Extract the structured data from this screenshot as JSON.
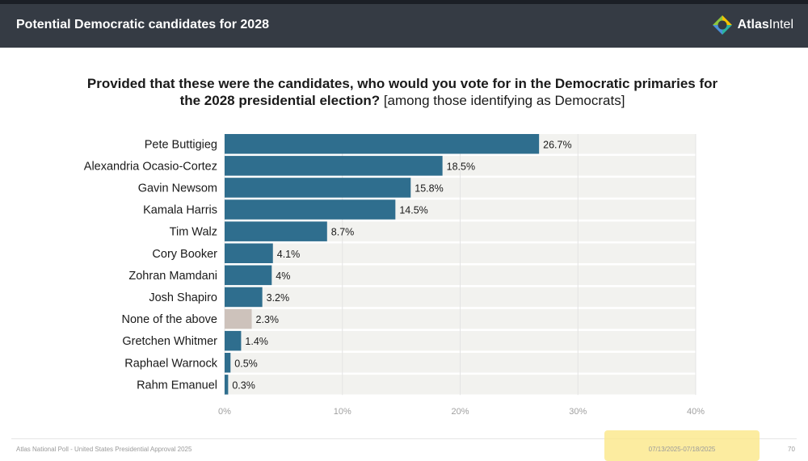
{
  "header": {
    "title": "Potential Democratic candidates for 2028",
    "logo_text_bold": "Atlas",
    "logo_text_regular": "Intel"
  },
  "question": {
    "bold_text": "Provided that these were the candidates, who would you vote for in the Democratic primaries for the 2028 presidential election?",
    "regular_text": " [among those identifying as Democrats]"
  },
  "chart_data": {
    "type": "bar",
    "orientation": "horizontal",
    "categories": [
      "Pete Buttigieg",
      "Alexandria Ocasio-Cortez",
      "Gavin Newsom",
      "Kamala Harris",
      "Tim Walz",
      "Cory Booker",
      "Zohran Mamdani",
      "Josh Shapiro",
      "None of the above",
      "Gretchen Whitmer",
      "Raphael Warnock",
      "Rahm Emanuel"
    ],
    "values": [
      26.7,
      18.5,
      15.8,
      14.5,
      8.7,
      4.1,
      4,
      3.2,
      2.3,
      1.4,
      0.5,
      0.3
    ],
    "value_labels": [
      "26.7%",
      "18.5%",
      "15.8%",
      "14.5%",
      "8.7%",
      "4.1%",
      "4%",
      "3.2%",
      "2.3%",
      "1.4%",
      "0.5%",
      "0.3%"
    ],
    "xlim": [
      0,
      40
    ],
    "xticks": [
      0,
      10,
      20,
      30,
      40
    ],
    "xtick_labels": [
      "0%",
      "10%",
      "20%",
      "30%",
      "40%"
    ],
    "grid": true,
    "colors": {
      "bar": "#2f6e8e",
      "none_of_the_above": "#cdc2bb",
      "track": "#f2f2ef"
    }
  },
  "footer": {
    "source": "Atlas National Poll - United States Presidential Approval 2025",
    "dates": "07/13/2025-07/18/2025",
    "page": "70"
  }
}
